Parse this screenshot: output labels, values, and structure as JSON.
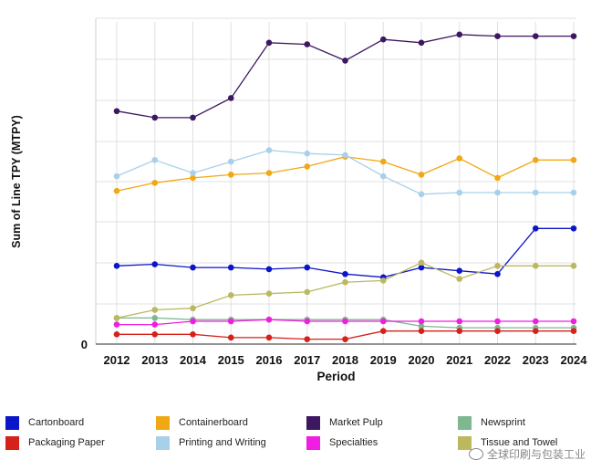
{
  "chart_data": {
    "type": "line",
    "xlabel": "Period",
    "ylabel": "Sum of Line TPY (MTPY)",
    "y_zero_label": "0",
    "ylim": [
      0,
      100
    ],
    "grid": true,
    "legend_position": "bottom",
    "x": [
      "2012",
      "2013",
      "2014",
      "2015",
      "2016",
      "2017",
      "2018",
      "2019",
      "2020",
      "2021",
      "2022",
      "2023",
      "2024"
    ],
    "series": [
      {
        "name": "Cartonboard",
        "color": "#0b16c9",
        "values": [
          24,
          24.5,
          23.5,
          23.5,
          23,
          23.5,
          21.5,
          20.5,
          23.5,
          22.5,
          21.5,
          35.5,
          35.5
        ]
      },
      {
        "name": "Containerboard",
        "color": "#f0a814",
        "values": [
          47,
          49.5,
          51,
          52,
          52.5,
          54.5,
          57.5,
          56,
          52,
          57,
          51,
          56.5,
          56.5
        ]
      },
      {
        "name": "Market Pulp",
        "color": "#3d1760",
        "values": [
          71.5,
          69.5,
          69.5,
          75.5,
          92.5,
          92,
          87,
          93.5,
          92.5,
          95,
          94.5,
          94.5,
          94.5
        ]
      },
      {
        "name": "Newsprint",
        "color": "#7db891",
        "values": [
          8,
          8,
          7.5,
          7.5,
          7.5,
          7.5,
          7.5,
          7.5,
          5.5,
          5,
          5,
          5,
          5
        ]
      },
      {
        "name": "Packaging Paper",
        "color": "#d6201a",
        "values": [
          3,
          3,
          3,
          2,
          2,
          1.5,
          1.5,
          4,
          4,
          4,
          4,
          4,
          4
        ]
      },
      {
        "name": "Printing and Writing",
        "color": "#a8d0e8",
        "values": [
          51.5,
          56.5,
          52.5,
          56,
          59.5,
          58.5,
          58,
          51.5,
          46,
          46.5,
          46.5,
          46.5,
          46.5
        ]
      },
      {
        "name": "Specialties",
        "color": "#f01ee0",
        "values": [
          6,
          6,
          7,
          7,
          7.5,
          7,
          7,
          7,
          7,
          7,
          7,
          7,
          7
        ]
      },
      {
        "name": "Tissue and Towel",
        "color": "#bbb860",
        "values": [
          8,
          10.5,
          11,
          15,
          15.5,
          16,
          19,
          19.5,
          25,
          20,
          24,
          24,
          24
        ]
      }
    ]
  },
  "watermark_text": "全球印刷与包装工业"
}
